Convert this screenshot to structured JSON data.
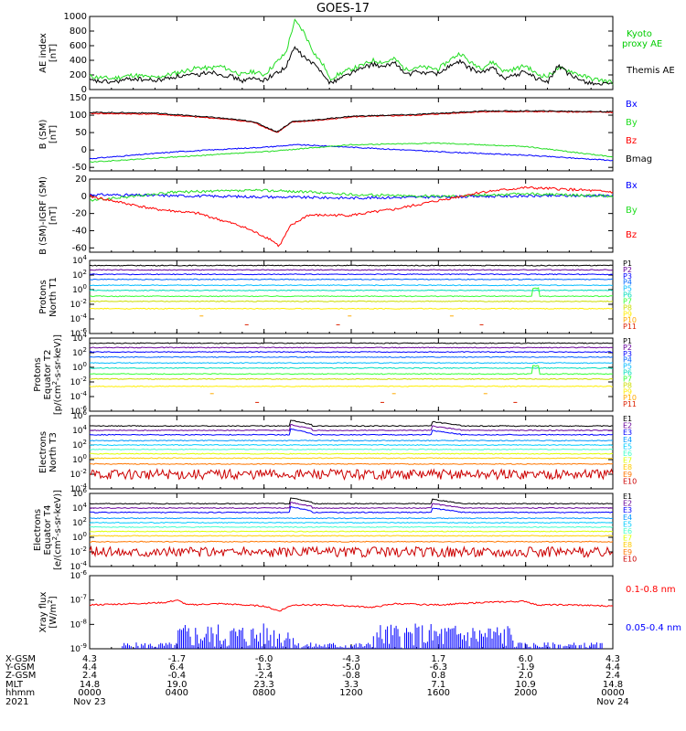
{
  "title": "GOES-17",
  "colors": {
    "black": "#000000",
    "red": "#ff0000",
    "green": "#22dd22",
    "blue": "#0000ff",
    "bright_green": "#00ff00"
  },
  "channel_colors": {
    "P": [
      "#000000",
      "#660099",
      "#0000ff",
      "#0066ff",
      "#00bbff",
      "#00ddbb",
      "#33ff33",
      "#ccdd00",
      "#ffee00",
      "#ffaa00",
      "#dd2200"
    ],
    "E": [
      "#000000",
      "#660099",
      "#0000ff",
      "#0099ff",
      "#00ccff",
      "#44ffcc",
      "#ddff00",
      "#ffcc00",
      "#ff7700",
      "#cc0000"
    ]
  },
  "chart_data": [
    {
      "name": "ae",
      "type": "line",
      "ylabel": "AE index\n[nT]",
      "yrange": [
        0,
        1000
      ],
      "yticks": [
        "0",
        "200",
        "400",
        "600",
        "800",
        "1000"
      ],
      "legend": [
        "Kyoto\nproxy AE",
        "Themis AE"
      ],
      "series": [
        {
          "name": "Kyoto proxy AE",
          "color": "green",
          "points": [
            [
              0,
              180
            ],
            [
              1,
              150
            ],
            [
              2,
              200
            ],
            [
              3,
              160
            ],
            [
              4,
              230
            ],
            [
              5,
              300
            ],
            [
              5.5,
              290
            ],
            [
              6,
              320
            ],
            [
              6.5,
              260
            ],
            [
              7,
              200
            ],
            [
              7.5,
              250
            ],
            [
              8,
              200
            ],
            [
              9,
              500
            ],
            [
              9.4,
              940
            ],
            [
              9.8,
              800
            ],
            [
              10.3,
              500
            ],
            [
              10.8,
              300
            ],
            [
              11,
              140
            ],
            [
              11.5,
              220
            ],
            [
              12,
              280
            ],
            [
              12.5,
              330
            ],
            [
              13,
              400
            ],
            [
              13.5,
              370
            ],
            [
              14,
              420
            ],
            [
              14.5,
              270
            ],
            [
              15,
              310
            ],
            [
              16,
              280
            ],
            [
              16.5,
              400
            ],
            [
              17,
              500
            ],
            [
              17.5,
              360
            ],
            [
              18,
              300
            ],
            [
              18.5,
              380
            ],
            [
              19,
              250
            ],
            [
              19.5,
              280
            ],
            [
              20,
              330
            ],
            [
              20.5,
              210
            ],
            [
              21,
              180
            ],
            [
              21.5,
              290
            ],
            [
              22,
              260
            ],
            [
              22.5,
              200
            ],
            [
              23,
              150
            ],
            [
              24,
              100
            ]
          ]
        },
        {
          "name": "Themis AE",
          "color": "black",
          "points": [
            [
              0,
              120
            ],
            [
              1,
              100
            ],
            [
              2,
              150
            ],
            [
              3,
              120
            ],
            [
              4,
              180
            ],
            [
              5,
              200
            ],
            [
              5.5,
              250
            ],
            [
              6,
              210
            ],
            [
              6.5,
              180
            ],
            [
              7,
              120
            ],
            [
              7.5,
              150
            ],
            [
              8,
              130
            ],
            [
              9,
              300
            ],
            [
              9.4,
              580
            ],
            [
              9.8,
              450
            ],
            [
              10.3,
              340
            ],
            [
              10.8,
              200
            ],
            [
              11,
              80
            ],
            [
              11.5,
              160
            ],
            [
              12,
              230
            ],
            [
              12.5,
              290
            ],
            [
              13,
              350
            ],
            [
              13.5,
              300
            ],
            [
              14,
              380
            ],
            [
              14.5,
              200
            ],
            [
              15,
              240
            ],
            [
              16,
              220
            ],
            [
              16.5,
              320
            ],
            [
              17,
              380
            ],
            [
              17.5,
              280
            ],
            [
              18,
              230
            ],
            [
              18.5,
              300
            ],
            [
              19,
              160
            ],
            [
              19.5,
              190
            ],
            [
              20,
              250
            ],
            [
              20.5,
              150
            ],
            [
              21,
              100
            ],
            [
              21.5,
              330
            ],
            [
              22,
              200
            ],
            [
              22.5,
              130
            ],
            [
              23,
              90
            ],
            [
              24,
              60
            ]
          ]
        }
      ]
    },
    {
      "name": "bsm",
      "type": "line",
      "ylabel": "B (SM)\n[nT]",
      "yrange": [
        -60,
        150
      ],
      "yticks": [
        "-50",
        "0",
        "50",
        "100",
        "150"
      ],
      "legend": [
        "Bx",
        "By",
        "Bz",
        "Bmag"
      ],
      "series": [
        {
          "name": "Bx",
          "color": "blue",
          "points": [
            [
              0,
              -25
            ],
            [
              4,
              -5
            ],
            [
              8,
              8
            ],
            [
              9.5,
              15
            ],
            [
              12,
              8
            ],
            [
              16,
              -5
            ],
            [
              20,
              -15
            ],
            [
              24,
              -30
            ]
          ]
        },
        {
          "name": "By",
          "color": "green",
          "points": [
            [
              0,
              -35
            ],
            [
              4,
              -20
            ],
            [
              8,
              -5
            ],
            [
              12,
              15
            ],
            [
              16,
              20
            ],
            [
              20,
              10
            ],
            [
              24,
              -20
            ]
          ]
        },
        {
          "name": "Bz",
          "color": "red",
          "points": [
            [
              0,
              105
            ],
            [
              3,
              103
            ],
            [
              6,
              90
            ],
            [
              7.5,
              80
            ],
            [
              8.6,
              50
            ],
            [
              9.3,
              80
            ],
            [
              10.5,
              85
            ],
            [
              12,
              95
            ],
            [
              15,
              100
            ],
            [
              18,
              110
            ],
            [
              21,
              110
            ],
            [
              24,
              108
            ]
          ]
        },
        {
          "name": "Bmag",
          "color": "black",
          "points": [
            [
              0,
              108
            ],
            [
              3,
              106
            ],
            [
              6,
              92
            ],
            [
              7.5,
              82
            ],
            [
              8.6,
              52
            ],
            [
              9.3,
              82
            ],
            [
              10.5,
              87
            ],
            [
              12,
              97
            ],
            [
              15,
              102
            ],
            [
              18,
              112
            ],
            [
              21,
              112
            ],
            [
              24,
              110
            ]
          ]
        }
      ]
    },
    {
      "name": "bdiff",
      "type": "line",
      "ylabel": "B (SM)-IGRF (SM)\n[nT]",
      "yrange": [
        -65,
        20
      ],
      "yticks": [
        "-60",
        "-40",
        "-20",
        "0",
        "20"
      ],
      "legend": [
        "Bx",
        "By",
        "Bz"
      ],
      "series": [
        {
          "name": "Bx",
          "color": "blue",
          "points": [
            [
              0,
              2
            ],
            [
              6,
              0
            ],
            [
              12,
              -2
            ],
            [
              18,
              0
            ],
            [
              24,
              1
            ]
          ]
        },
        {
          "name": "By",
          "color": "green",
          "points": [
            [
              0,
              -5
            ],
            [
              4,
              5
            ],
            [
              8,
              7
            ],
            [
              10,
              5
            ],
            [
              12,
              2
            ],
            [
              16,
              0
            ],
            [
              20,
              3
            ],
            [
              24,
              0
            ]
          ]
        },
        {
          "name": "Bz",
          "color": "red",
          "points": [
            [
              0,
              0
            ],
            [
              3,
              -15
            ],
            [
              5,
              -20
            ],
            [
              7,
              -35
            ],
            [
              8.3,
              -50
            ],
            [
              8.7,
              -58
            ],
            [
              9.2,
              -35
            ],
            [
              10,
              -22
            ],
            [
              12,
              -22
            ],
            [
              14,
              -15
            ],
            [
              16,
              -5
            ],
            [
              18,
              5
            ],
            [
              20,
              10
            ],
            [
              22,
              8
            ],
            [
              24,
              5
            ]
          ]
        }
      ]
    },
    {
      "name": "protons_t1",
      "type": "line",
      "ylabel": "Protons\nNorth T1",
      "yrange_log": [
        -6,
        4
      ],
      "yticks": [
        "10^4",
        "10^2",
        "10^0",
        "10^-2",
        "10^-4",
        "10^-6"
      ],
      "legend": [
        "P1",
        "P2",
        "P3",
        "P4",
        "P5",
        "P6",
        "P7",
        "P8",
        "P9",
        "P10",
        "P11"
      ],
      "levels_log": [
        3.3,
        2.7,
        2.1,
        1.4,
        0.6,
        -0.1,
        -0.9,
        -1.6,
        -2.6,
        -3.6,
        -4.8
      ]
    },
    {
      "name": "protons_t2",
      "type": "line",
      "ylabel": "Protons\nEquator T2\n[p/(cm^2-s-sr-keV)]",
      "yrange_log": [
        -6,
        4
      ],
      "yticks": [
        "10^4",
        "10^2",
        "10^0",
        "10^-2",
        "10^-4",
        "10^-6"
      ],
      "legend": [
        "P1",
        "P2",
        "P3",
        "P4",
        "P5",
        "P6",
        "P7",
        "P8",
        "P9",
        "P10",
        "P11"
      ],
      "levels_log": [
        3.3,
        2.7,
        2.1,
        1.4,
        0.6,
        -0.1,
        -0.9,
        -1.6,
        -2.6,
        -3.6,
        -4.8
      ]
    },
    {
      "name": "electrons_t3",
      "type": "line",
      "ylabel": "Electrons\nNorth T3",
      "yrange_log": [
        -4,
        6
      ],
      "yticks": [
        "10^6",
        "10^4",
        "10^2",
        "10^0",
        "10^-2",
        "10^-4"
      ],
      "legend": [
        "E1",
        "E2",
        "E3",
        "E4",
        "E5",
        "E6",
        "E7",
        "E8",
        "E9",
        "E10"
      ],
      "levels_log": [
        4.6,
        4.0,
        3.4,
        2.6,
        2.0,
        1.4,
        0.8,
        0.2,
        -0.6,
        -2.0
      ]
    },
    {
      "name": "electrons_t4",
      "type": "line",
      "ylabel": "Electrons\nEquator T4\n[e/(cm^2-s-sr-keV)]",
      "yrange_log": [
        -4,
        6
      ],
      "yticks": [
        "10^6",
        "10^4",
        "10^2",
        "10^0",
        "10^-2",
        "10^-4"
      ],
      "legend": [
        "E1",
        "E2",
        "E3",
        "E4",
        "E5",
        "E6",
        "E7",
        "E8",
        "E9",
        "E10"
      ],
      "levels_log": [
        4.6,
        4.0,
        3.4,
        2.6,
        2.0,
        1.4,
        0.8,
        0.2,
        -0.6,
        -2.0
      ]
    },
    {
      "name": "xray",
      "type": "line",
      "ylabel": "Xray flux\n[W/m^2]",
      "yrange_log": [
        -9,
        -6
      ],
      "yticks": [
        "10^-6",
        "10^-7",
        "10^-8",
        "10^-9"
      ],
      "legend": [
        "0.1-0.8 nm",
        "0.05-0.4 nm"
      ],
      "series": [
        {
          "name": "0.1-0.8 nm",
          "color": "red",
          "points": [
            [
              0,
              -7.2
            ],
            [
              2,
              -7.15
            ],
            [
              3.5,
              -7.1
            ],
            [
              4,
              -7.0
            ],
            [
              4.5,
              -7.2
            ],
            [
              6,
              -7.15
            ],
            [
              8,
              -7.25
            ],
            [
              8.7,
              -7.45
            ],
            [
              9.3,
              -7.2
            ],
            [
              11,
              -7.2
            ],
            [
              13,
              -7.3
            ],
            [
              14,
              -7.15
            ],
            [
              16,
              -7.2
            ],
            [
              18,
              -7.1
            ],
            [
              20,
              -7.05
            ],
            [
              20.5,
              -7.2
            ],
            [
              22,
              -7.2
            ],
            [
              24,
              -7.25
            ]
          ]
        }
      ]
    }
  ],
  "x_axis": {
    "range_hours": [
      0,
      24
    ],
    "ticks": [
      {
        "hour": 0,
        "xgsm": "4.3",
        "ygsm": "4.4",
        "zgsm": "2.4",
        "mlt": "14.8",
        "time": "0000",
        "date": "Nov 23"
      },
      {
        "hour": 4,
        "xgsm": "-1.7",
        "ygsm": "6.4",
        "zgsm": "-0.4",
        "mlt": "19.0",
        "time": "0400",
        "date": ""
      },
      {
        "hour": 8,
        "xgsm": "-6.0",
        "ygsm": "1.3",
        "zgsm": "-2.4",
        "mlt": "23.3",
        "time": "0800",
        "date": ""
      },
      {
        "hour": 12,
        "xgsm": "-4.3",
        "ygsm": "-5.0",
        "zgsm": "-0.8",
        "mlt": "3.3",
        "time": "1200",
        "date": ""
      },
      {
        "hour": 16,
        "xgsm": "1.7",
        "ygsm": "-6.3",
        "zgsm": "0.8",
        "mlt": "7.1",
        "time": "1600",
        "date": ""
      },
      {
        "hour": 20,
        "xgsm": "6.0",
        "ygsm": "-1.9",
        "zgsm": "2.0",
        "mlt": "10.9",
        "time": "2000",
        "date": ""
      },
      {
        "hour": 24,
        "xgsm": "4.3",
        "ygsm": "4.4",
        "zgsm": "2.4",
        "mlt": "14.8",
        "time": "0000",
        "date": "Nov 24"
      }
    ],
    "row_labels": [
      "X-GSM",
      "Y-GSM",
      "Z-GSM",
      "MLT",
      "hhmm",
      "2021"
    ]
  }
}
